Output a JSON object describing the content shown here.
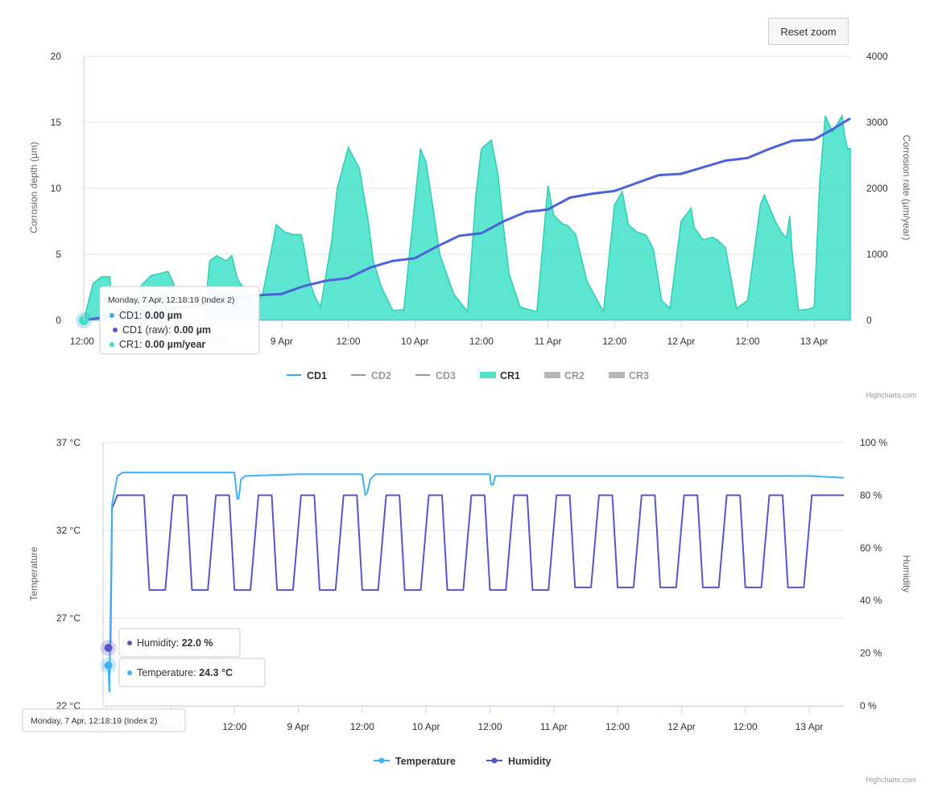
{
  "reset_zoom_label": "Reset zoom",
  "credits": "Highcharts.com",
  "colors": {
    "cd1": "#3fa9e6",
    "cd1_raw": "#5a55c8",
    "cr1": "#40e0c8",
    "temperature": "#3fb3f0",
    "humidity": "#5a55c8",
    "legend_hidden": "#999999",
    "gridline": "#e6e6e6"
  },
  "chart_data": [
    {
      "type": "area",
      "x_tick_labels": [
        "12:00",
        "8 Apr",
        "12:00",
        "9 Apr",
        "12:00",
        "10 Apr",
        "12:00",
        "11 Apr",
        "12:00",
        "12 Apr",
        "12:00",
        "13 Apr"
      ],
      "x_ticks_hours": [
        12,
        24,
        36,
        48,
        60,
        72,
        84,
        96,
        108,
        120,
        132,
        144
      ],
      "xlim_hours": [
        12.3,
        150.5
      ],
      "y_left": {
        "title": "Corrosion depth (µm)",
        "ticks": [
          0,
          5,
          10,
          15,
          20
        ],
        "ylim": [
          0,
          20
        ]
      },
      "y_right": {
        "title": "Corrosion rate (µm/year)",
        "ticks": [
          0,
          1000,
          2000,
          3000,
          4000
        ],
        "ylim": [
          0,
          4000
        ]
      },
      "legend": {
        "placement": "bottom-center",
        "items": [
          {
            "name": "CD1",
            "symbol": "line",
            "visible": true
          },
          {
            "name": "CD2",
            "symbol": "line",
            "visible": false
          },
          {
            "name": "CD3",
            "symbol": "line",
            "visible": false
          },
          {
            "name": "CR1",
            "symbol": "area",
            "visible": true
          },
          {
            "name": "CR2",
            "symbol": "area",
            "visible": false
          },
          {
            "name": "CR3",
            "symbol": "area",
            "visible": false
          }
        ]
      },
      "series": [
        {
          "name": "CD1",
          "axis": "left",
          "x_hours": [
            12.3,
            20,
            28,
            36,
            40,
            44,
            48,
            52,
            56,
            60,
            64,
            68,
            72,
            76,
            80,
            84,
            88,
            92,
            96,
            100,
            104,
            108,
            112,
            116,
            120,
            124,
            128,
            132,
            136,
            140,
            144,
            147,
            150.5
          ],
          "values": [
            0,
            0.5,
            0.9,
            1.3,
            1.7,
            1.9,
            2.0,
            2.6,
            3.0,
            3.2,
            4.0,
            4.5,
            4.7,
            5.6,
            6.4,
            6.6,
            7.5,
            8.2,
            8.4,
            9.3,
            9.6,
            9.8,
            10.4,
            11.0,
            11.1,
            11.6,
            12.1,
            12.3,
            13.0,
            13.6,
            13.7,
            14.4,
            15.3
          ]
        },
        {
          "name": "CR1",
          "axis": "right",
          "x_hours": [
            12.3,
            14,
            15.5,
            17,
            17.5,
            18,
            23,
            24.5,
            26,
            27.5,
            28.5,
            29,
            34,
            35,
            36.3,
            38,
            39,
            40,
            43,
            44.5,
            46,
            47,
            48.5,
            50,
            51.5,
            52,
            53,
            54,
            55,
            57,
            58,
            60,
            62,
            63.6,
            64.5,
            66,
            68,
            70,
            72,
            73,
            74,
            75.1,
            76.5,
            79,
            81.5,
            83,
            84,
            85.8,
            87,
            88,
            89,
            91,
            94,
            96,
            97,
            98.6,
            99.5,
            101,
            103,
            106,
            108,
            109.4,
            110.5,
            112,
            113.7,
            115,
            116.5,
            118,
            120,
            121.8,
            122.4,
            124,
            125.7,
            126.5,
            128,
            130,
            132,
            134.3,
            135,
            137,
            138.2,
            139,
            139.6,
            140,
            141.2,
            142,
            143,
            144,
            145,
            146,
            147.3,
            149,
            149.5,
            150,
            150.5
          ],
          "values": [
            0,
            560,
            660,
            660,
            0,
            0,
            560,
            680,
            710,
            740,
            560,
            0,
            0,
            900,
            980,
            900,
            980,
            630,
            250,
            380,
            1000,
            1450,
            1340,
            1300,
            1300,
            1100,
            600,
            350,
            200,
            1200,
            2000,
            2620,
            2300,
            1500,
            900,
            500,
            150,
            160,
            1800,
            2600,
            2400,
            1800,
            1000,
            400,
            130,
            1900,
            2600,
            2730,
            2200,
            1400,
            700,
            200,
            130,
            2040,
            1600,
            1460,
            1440,
            1300,
            600,
            130,
            1750,
            1950,
            1450,
            1340,
            1290,
            1080,
            300,
            180,
            1500,
            1700,
            1400,
            1220,
            1260,
            1220,
            1100,
            180,
            300,
            1750,
            1900,
            1500,
            1320,
            1250,
            1580,
            1050,
            150,
            160,
            170,
            200,
            2100,
            3100,
            2850,
            3100,
            2800,
            2600,
            2600
          ]
        }
      ],
      "tooltip": {
        "header": "Monday, 7 Apr, 12:18:19 (Index 2)",
        "rows": [
          {
            "label": "CD1",
            "value": "0.00 µm"
          },
          {
            "label": "CD1 (raw)",
            "value": "0.00 µm"
          },
          {
            "label": "CR1",
            "value": "0.00 µm/year"
          }
        ]
      }
    },
    {
      "type": "line",
      "x_tick_labels": [
        "12:00",
        "8 Apr",
        "12:00",
        "9 Apr",
        "12:00",
        "10 Apr",
        "12:00",
        "11 Apr",
        "12:00",
        "12 Apr",
        "12:00",
        "13 Apr"
      ],
      "x_ticks_hours": [
        12,
        24,
        36,
        48,
        60,
        72,
        84,
        96,
        108,
        120,
        132,
        144
      ],
      "xlim_hours": [
        11.3,
        150.5
      ],
      "y_left": {
        "title": "Temperature",
        "ticks": [
          22,
          27,
          32,
          37
        ],
        "tick_labels": [
          "22 °C",
          "27 °C",
          "32 °C",
          "37 °C"
        ],
        "ylim": [
          22,
          37
        ]
      },
      "y_right": {
        "title": "Humidity",
        "ticks": [
          0,
          20,
          40,
          60,
          80,
          100
        ],
        "tick_labels": [
          "0 %",
          "20 %",
          "40 %",
          "60 %",
          "80 %",
          "100 %"
        ],
        "ylim": [
          0,
          100
        ]
      },
      "legend": {
        "placement": "bottom-center",
        "items": [
          {
            "name": "Temperature",
            "symbol": "line-marker",
            "visible": true
          },
          {
            "name": "Humidity",
            "symbol": "line-marker",
            "visible": true
          }
        ]
      },
      "series": [
        {
          "name": "Temperature",
          "axis": "left",
          "x_hours": [
            12.3,
            12.5,
            13,
            14,
            15,
            24,
            36,
            36.5,
            36.8,
            37.2,
            38,
            48,
            60,
            60.6,
            61,
            61.5,
            62.5,
            72,
            84,
            84.2,
            84.6,
            85,
            96,
            108,
            120,
            132,
            144,
            150.5
          ],
          "values": [
            24.3,
            22.8,
            33.5,
            35.1,
            35.3,
            35.3,
            35.3,
            33.8,
            33.8,
            34.9,
            35.1,
            35.2,
            35.2,
            34.0,
            34.2,
            34.9,
            35.2,
            35.2,
            35.2,
            34.6,
            34.6,
            35.1,
            35.1,
            35.1,
            35.1,
            35.1,
            35.1,
            35.0
          ]
        },
        {
          "name": "Humidity",
          "axis": "right",
          "x_hours": [
            12.3,
            12.7,
            13,
            14,
            15.5,
            19,
            20,
            23,
            24.5,
            27,
            28,
            31,
            32.5,
            35,
            36,
            39,
            40.5,
            43,
            44,
            47,
            48.5,
            51,
            52,
            55,
            56.5,
            59,
            60,
            63,
            64.5,
            67,
            68,
            71,
            72.5,
            75,
            76,
            79,
            80.5,
            83,
            84,
            87,
            88.5,
            91,
            92,
            95,
            96.5,
            99,
            100,
            103,
            104.5,
            107,
            108,
            111,
            112.5,
            115,
            116,
            119,
            120.5,
            123,
            124,
            127,
            128.5,
            131,
            132,
            135,
            136.5,
            139,
            140,
            143,
            144.5,
            150.5
          ],
          "values": [
            22,
            24,
            75,
            80,
            80,
            80,
            44,
            44,
            80,
            80,
            44,
            44,
            80,
            80,
            44,
            44,
            80,
            80,
            44,
            44,
            80,
            80,
            44,
            44,
            80,
            80,
            44,
            44,
            80,
            80,
            44,
            44,
            80,
            80,
            44,
            44,
            80,
            80,
            44,
            44,
            80,
            80,
            44,
            44,
            80,
            80,
            45,
            45,
            80,
            80,
            45,
            45,
            80,
            80,
            45,
            45,
            80,
            80,
            45,
            45,
            80,
            80,
            45,
            45,
            80,
            80,
            45,
            45,
            80,
            80
          ]
        }
      ],
      "tooltip_humidity": {
        "label": "Humidity",
        "value": "22.0 %"
      },
      "tooltip_temperature": {
        "label": "Temperature",
        "value": "24.3 °C"
      },
      "tooltip_x": "Monday, 7 Apr, 12:18:19 (Index 2)"
    }
  ]
}
